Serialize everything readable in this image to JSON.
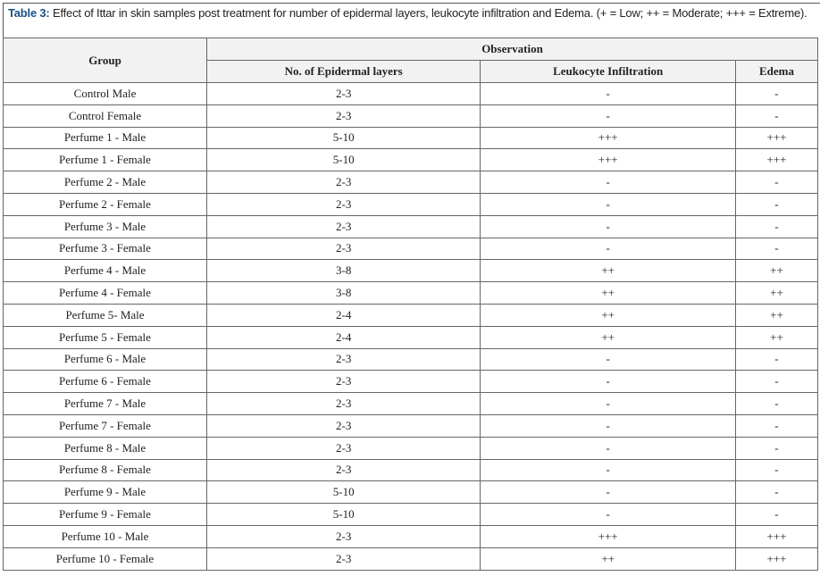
{
  "caption": {
    "label": "Table 3:",
    "text": " Effect of Ittar in skin samples post treatment for number of epidermal layers, leukocyte infiltration and Edema. (+ = Low; ++ = Moderate; +++ = Extreme)."
  },
  "header": {
    "group": "Group",
    "observation": "Observation",
    "cols": [
      "No. of Epidermal layers",
      "Leukocyte Infiltration",
      "Edema"
    ]
  },
  "rows": [
    [
      "Control Male",
      "2-3",
      "-",
      "-"
    ],
    [
      "Control Female",
      "2-3",
      "-",
      "-"
    ],
    [
      "Perfume 1 - Male",
      "5-10",
      "+++",
      "+++"
    ],
    [
      "Perfume 1 - Female",
      "5-10",
      "+++",
      "+++"
    ],
    [
      "Perfume 2 - Male",
      "2-3",
      "-",
      "-"
    ],
    [
      "Perfume 2 - Female",
      "2-3",
      "-",
      "-"
    ],
    [
      "Perfume 3 - Male",
      "2-3",
      "-",
      "-"
    ],
    [
      "Perfume 3 - Female",
      "2-3",
      "-",
      "-"
    ],
    [
      "Perfume 4 - Male",
      "3-8",
      "++",
      "++"
    ],
    [
      "Perfume 4 - Female",
      "3-8",
      "++",
      "++"
    ],
    [
      "Perfume 5- Male",
      "2-4",
      "++",
      "++"
    ],
    [
      "Perfume 5 - Female",
      "2-4",
      "++",
      "++"
    ],
    [
      "Perfume 6 - Male",
      "2-3",
      "-",
      "-"
    ],
    [
      "Perfume 6 - Female",
      "2-3",
      "-",
      "-"
    ],
    [
      "Perfume 7 - Male",
      "2-3",
      "-",
      "-"
    ],
    [
      "Perfume 7 - Female",
      "2-3",
      "-",
      "-"
    ],
    [
      "Perfume 8 - Male",
      "2-3",
      "-",
      "-"
    ],
    [
      "Perfume 8 - Female",
      "2-3",
      "-",
      "-"
    ],
    [
      "Perfume 9 - Male",
      "5-10",
      "-",
      "-"
    ],
    [
      "Perfume 9 - Female",
      "5-10",
      "-",
      "-"
    ],
    [
      "Perfume 10 - Male",
      "2-3",
      "+++",
      "+++"
    ],
    [
      "Perfume 10 - Female",
      "2-3",
      "++",
      "+++"
    ]
  ]
}
